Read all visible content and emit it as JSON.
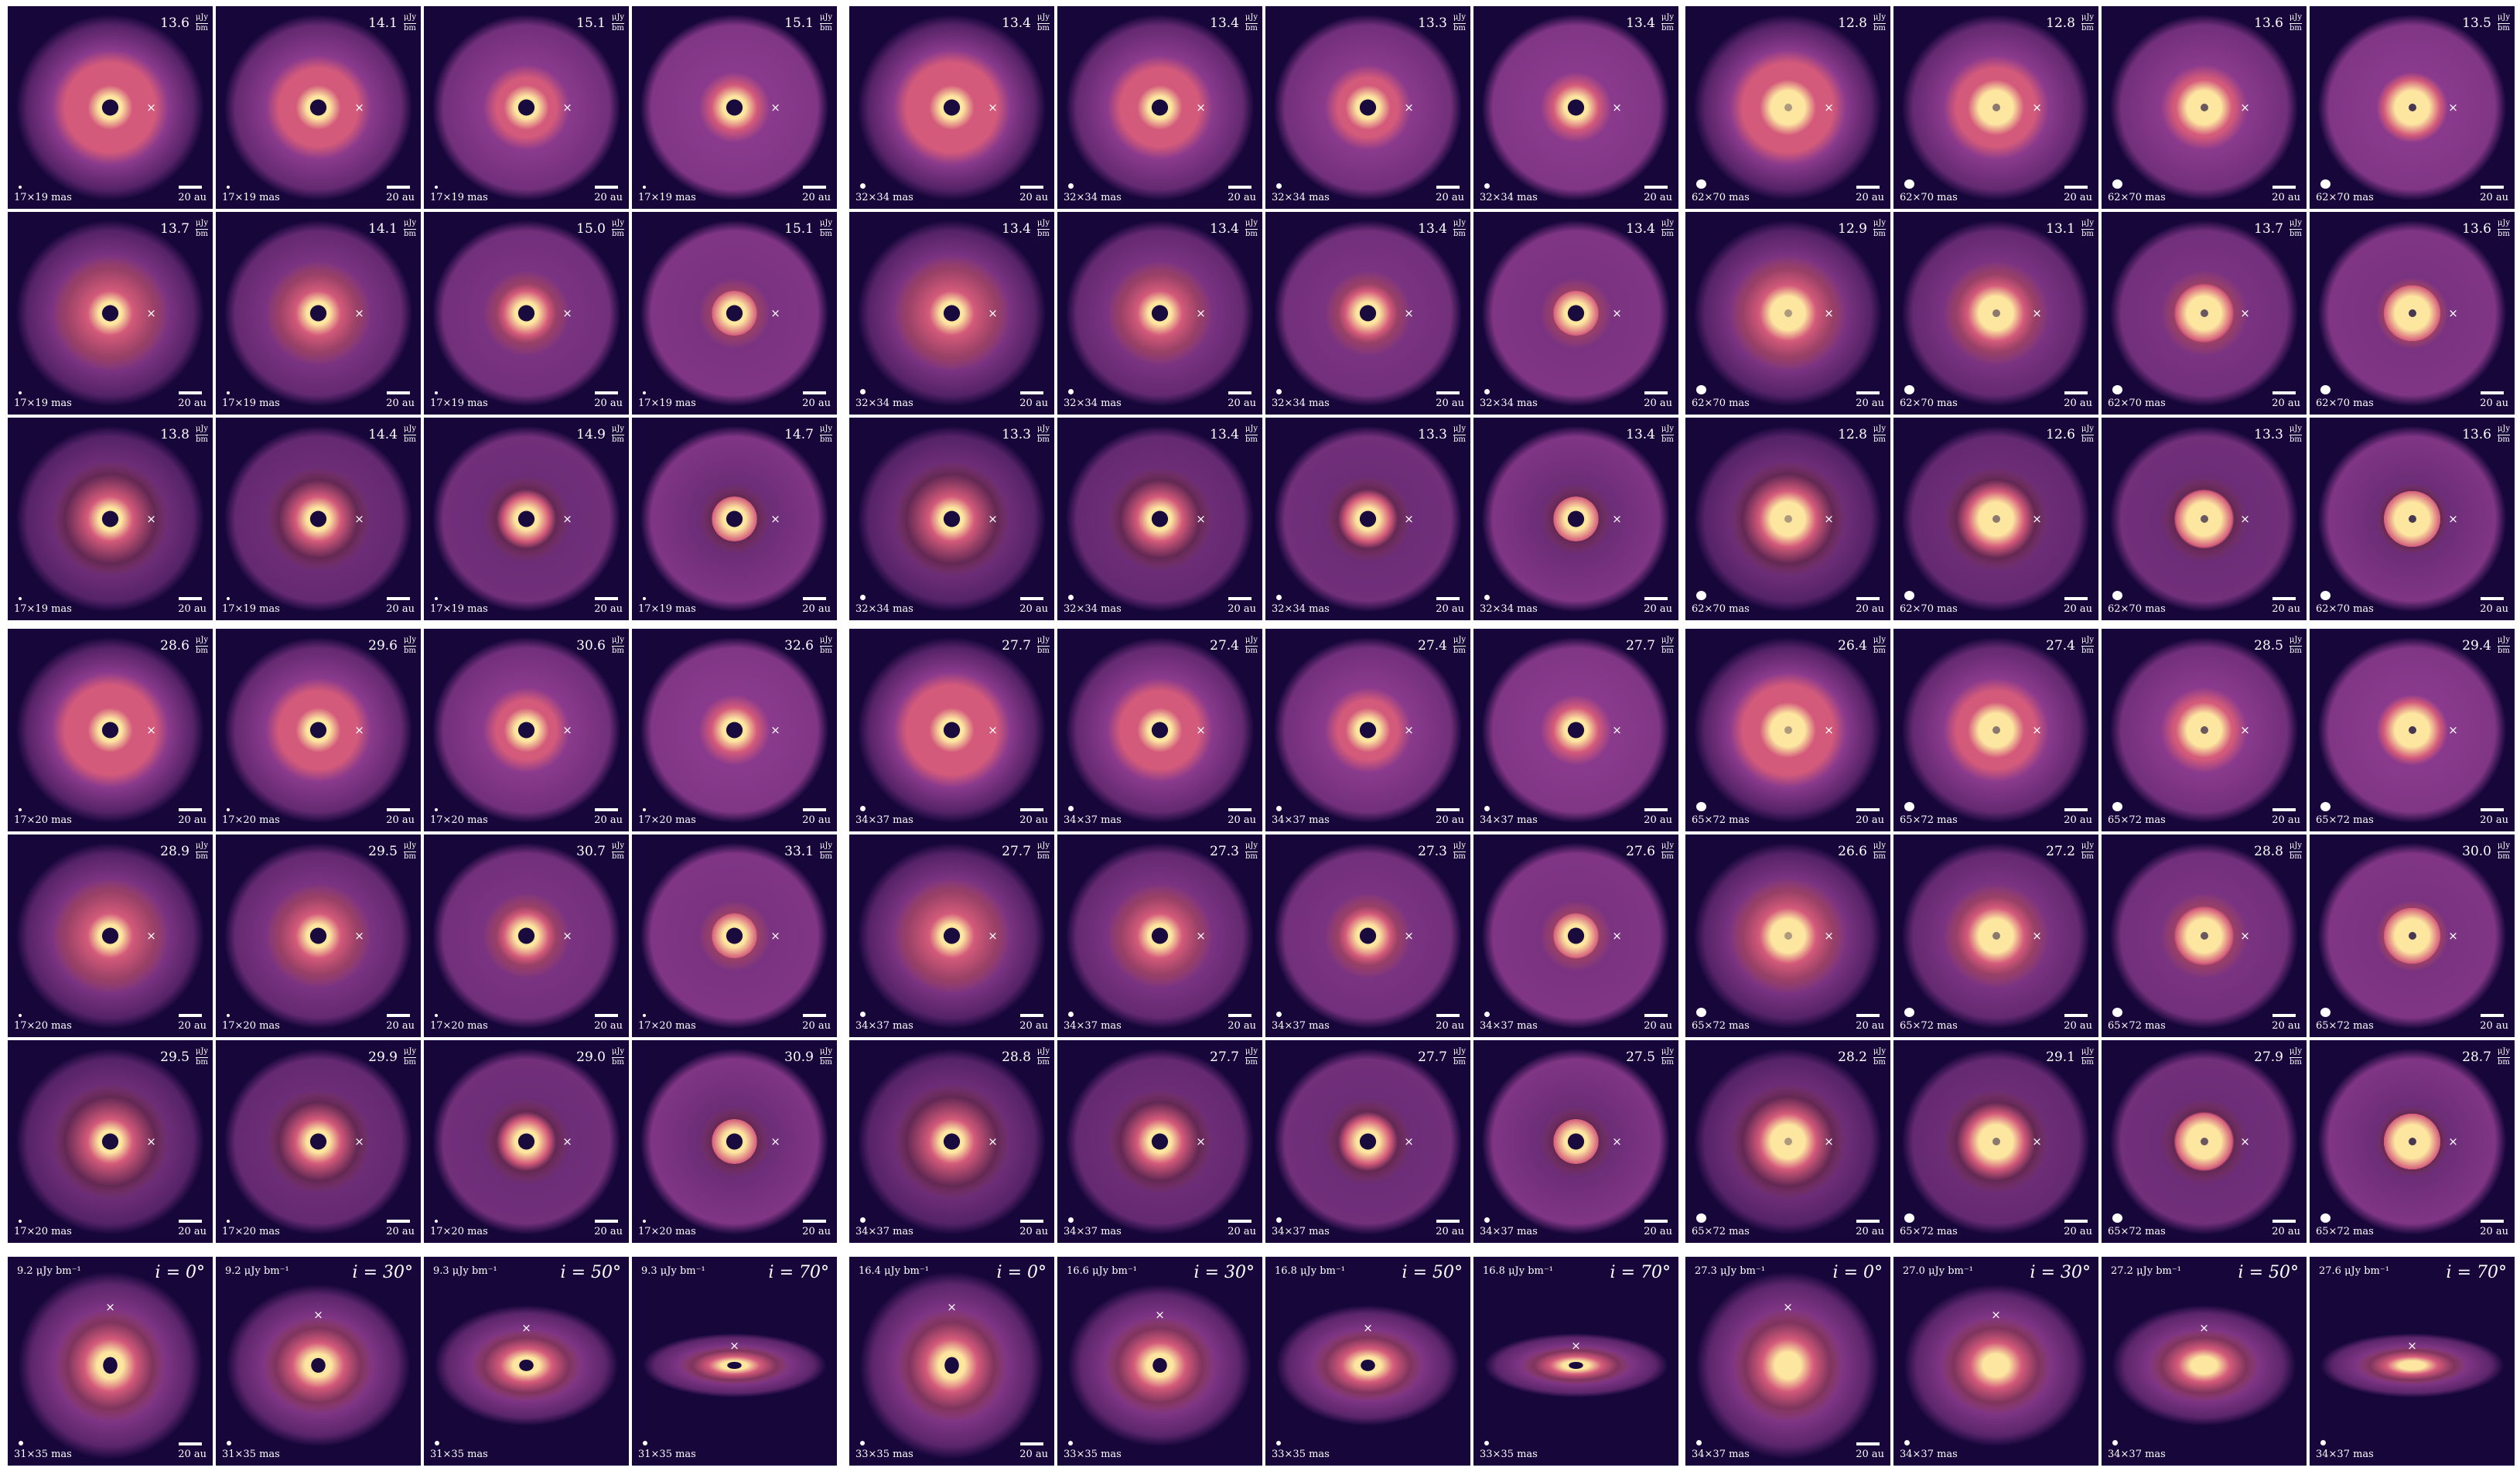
{
  "figure": {
    "colors": {
      "background": "#16063a",
      "outer": "#8a3a8c",
      "mid": "#d35a7a",
      "bright": "#fde7a0",
      "core": "#1a0b3e"
    },
    "groups": [
      {
        "beam": "17×19 mas",
        "scale": "20 au",
        "unit": [
          "μJy",
          "bm"
        ],
        "rows": [
          [
            "13.6",
            "14.1",
            "15.1",
            "15.1"
          ],
          [
            "13.7",
            "14.1",
            "15.0",
            "15.1"
          ],
          [
            "13.8",
            "14.4",
            "14.9",
            "14.7"
          ]
        ]
      },
      {
        "beam": "32×34 mas",
        "scale": "20 au",
        "unit": [
          "μJy",
          "bm"
        ],
        "rows": [
          [
            "13.4",
            "13.4",
            "13.3",
            "13.4"
          ],
          [
            "13.4",
            "13.4",
            "13.4",
            "13.4"
          ],
          [
            "13.3",
            "13.4",
            "13.3",
            "13.4"
          ]
        ]
      },
      {
        "beam": "62×70 mas",
        "scale": "20 au",
        "unit": [
          "μJy",
          "bm"
        ],
        "rows": [
          [
            "12.8",
            "12.8",
            "13.6",
            "13.5"
          ],
          [
            "12.9",
            "13.1",
            "13.7",
            "13.6"
          ],
          [
            "12.8",
            "12.6",
            "13.3",
            "13.6"
          ]
        ]
      },
      {
        "beam": "17×20 mas",
        "scale": "20 au",
        "unit": [
          "μJy",
          "bm"
        ],
        "rows": [
          [
            "28.6",
            "29.6",
            "30.6",
            "32.6"
          ],
          [
            "28.9",
            "29.5",
            "30.7",
            "33.1"
          ],
          [
            "29.5",
            "29.9",
            "29.0",
            "30.9"
          ]
        ]
      },
      {
        "beam": "34×37 mas",
        "scale": "20 au",
        "unit": [
          "μJy",
          "bm"
        ],
        "rows": [
          [
            "27.7",
            "27.4",
            "27.4",
            "27.7"
          ],
          [
            "27.7",
            "27.3",
            "27.3",
            "27.6"
          ],
          [
            "28.8",
            "27.7",
            "27.7",
            "27.5"
          ]
        ]
      },
      {
        "beam": "65×72 mas",
        "scale": "20 au",
        "unit": [
          "μJy",
          "bm"
        ],
        "rows": [
          [
            "26.4",
            "27.4",
            "28.5",
            "29.4"
          ],
          [
            "26.6",
            "27.2",
            "28.8",
            "30.0"
          ],
          [
            "28.2",
            "29.1",
            "27.9",
            "28.7"
          ]
        ]
      }
    ],
    "inclination_row": [
      {
        "beam": "31×35 mas",
        "scale": "20 au",
        "panels": [
          {
            "flux": "9.2 μJy bm⁻¹",
            "inc": "i = 0°"
          },
          {
            "flux": "9.2 μJy bm⁻¹",
            "inc": "i = 30°"
          },
          {
            "flux": "9.3 μJy bm⁻¹",
            "inc": "i = 50°"
          },
          {
            "flux": "9.3 μJy bm⁻¹",
            "inc": "i = 70°"
          }
        ]
      },
      {
        "beam": "33×35 mas",
        "scale": "20 au",
        "panels": [
          {
            "flux": "16.4 μJy bm⁻¹",
            "inc": "i = 0°"
          },
          {
            "flux": "16.6 μJy bm⁻¹",
            "inc": "i = 30°"
          },
          {
            "flux": "16.8 μJy bm⁻¹",
            "inc": "i = 50°"
          },
          {
            "flux": "16.8 μJy bm⁻¹",
            "inc": "i = 70°"
          }
        ]
      },
      {
        "beam": "34×37 mas",
        "scale": "20 au",
        "panels": [
          {
            "flux": "27.3 μJy bm⁻¹",
            "inc": "i = 0°"
          },
          {
            "flux": "27.0 μJy bm⁻¹",
            "inc": "i = 30°"
          },
          {
            "flux": "27.2 μJy bm⁻¹",
            "inc": "i = 50°"
          },
          {
            "flux": "27.6 μJy bm⁻¹",
            "inc": "i = 70°"
          }
        ]
      }
    ],
    "marker_symbol": "×"
  }
}
